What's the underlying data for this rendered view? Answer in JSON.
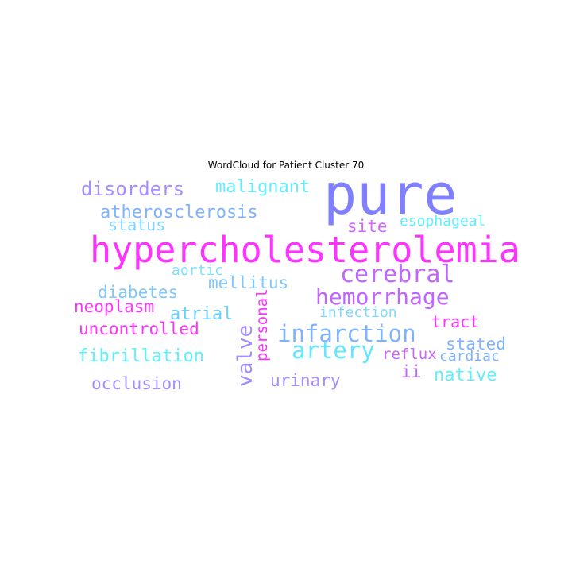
{
  "chart_data": {
    "type": "wordcloud",
    "title": "WordCloud for Patient Cluster 70",
    "words": [
      {
        "text": "pure",
        "color": "#7f7fff"
      },
      {
        "text": "hypercholesterolemia",
        "color": "#ff33ff"
      },
      {
        "text": "cerebral",
        "color": "#bf66ff"
      },
      {
        "text": "hemorrhage",
        "color": "#bf66ff"
      },
      {
        "text": "infarction",
        "color": "#7fb3ff"
      },
      {
        "text": "artery",
        "color": "#5fe8ff"
      },
      {
        "text": "disorders",
        "color": "#a58cff"
      },
      {
        "text": "malignant",
        "color": "#5fefff"
      },
      {
        "text": "atherosclerosis",
        "color": "#7fb3ff"
      },
      {
        "text": "status",
        "color": "#7fd3ff"
      },
      {
        "text": "site",
        "color": "#d066ff"
      },
      {
        "text": "esophageal",
        "color": "#5ff0ff"
      },
      {
        "text": "aortic",
        "color": "#7fe0ff"
      },
      {
        "text": "mellitus",
        "color": "#7fc6ff"
      },
      {
        "text": "diabetes",
        "color": "#7fc6ff"
      },
      {
        "text": "neoplasm",
        "color": "#ff33ff"
      },
      {
        "text": "atrial",
        "color": "#66d0ff"
      },
      {
        "text": "personal",
        "color": "#ff33ff"
      },
      {
        "text": "valve",
        "color": "#a58cff"
      },
      {
        "text": "infection",
        "color": "#7fd9ff"
      },
      {
        "text": "tract",
        "color": "#ff33ff"
      },
      {
        "text": "uncontrolled",
        "color": "#ff33ff"
      },
      {
        "text": "stated",
        "color": "#7fb3ff"
      },
      {
        "text": "fibrillation",
        "color": "#5ff0ff"
      },
      {
        "text": "reflux",
        "color": "#cc66ff"
      },
      {
        "text": "cardiac",
        "color": "#7fb3ff"
      },
      {
        "text": "ii",
        "color": "#bf66ff"
      },
      {
        "text": "native",
        "color": "#5ff0ff"
      },
      {
        "text": "urinary",
        "color": "#a58cff"
      },
      {
        "text": "occlusion",
        "color": "#a58cff"
      }
    ]
  }
}
